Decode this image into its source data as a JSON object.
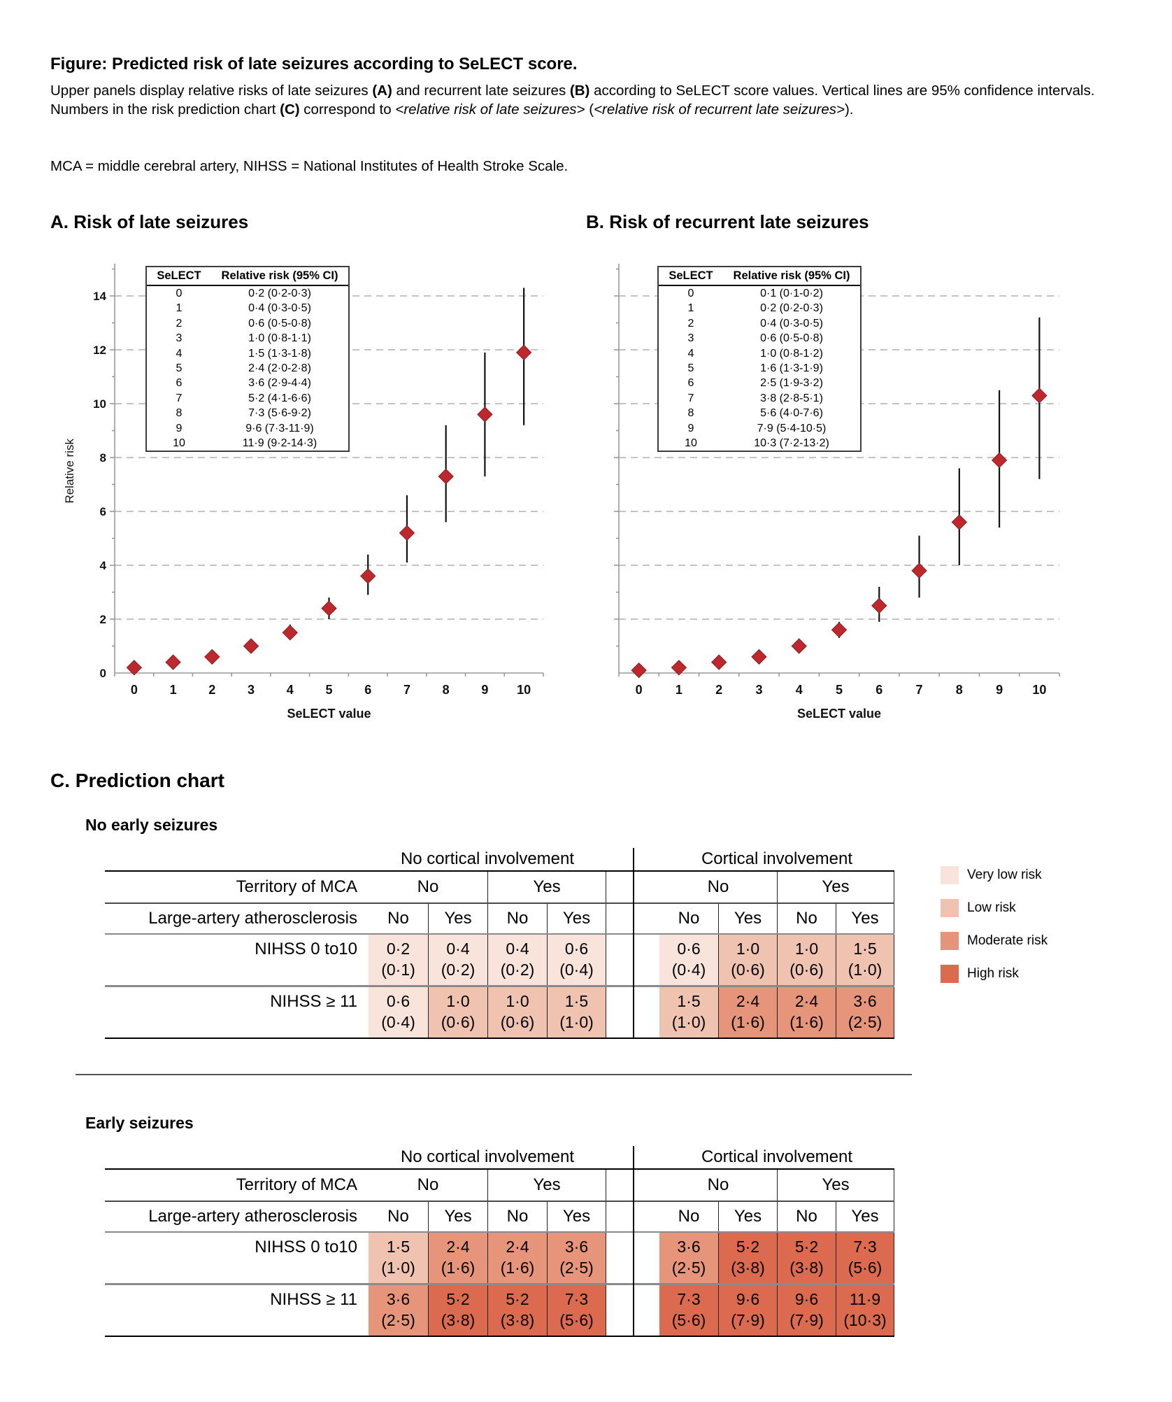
{
  "page": {
    "title": "Figure: Predicted risk of late seizures according to SeLECT score.",
    "caption_segments": [
      {
        "t": "Upper panels display relative risks of late seizures "
      },
      {
        "t": "(A)",
        "b": 1
      },
      {
        "t": " and recurrent late seizures "
      },
      {
        "t": "(B)",
        "b": 1
      },
      {
        "t": " according to SeLECT score values. Vertical lines are 95% confidence intervals. Numbers in the risk prediction chart "
      },
      {
        "t": "(C)",
        "b": 1
      },
      {
        "t": " correspond to "
      },
      {
        "t": "<relative risk of late seizures>",
        "i": 1
      },
      {
        "t": " ("
      },
      {
        "t": "<relative risk of recurrent late seizures>",
        "i": 1
      },
      {
        "t": ")."
      }
    ],
    "abbrev": "MCA = middle cerebral artery, NIHSS = National Institutes of Health Stroke Scale."
  },
  "panel_a": {
    "heading": "A. Risk of late seizures",
    "inset": {
      "header": [
        "SeLECT",
        "Relative risk (95% CI)"
      ],
      "rows": [
        [
          "0",
          "0·2 (0·2-0·3)"
        ],
        [
          "1",
          "0·4 (0·3-0·5)"
        ],
        [
          "2",
          "0·6 (0·5-0·8)"
        ],
        [
          "3",
          "1·0 (0·8-1·1)"
        ],
        [
          "4",
          "1·5 (1·3-1·8)"
        ],
        [
          "5",
          "2·4 (2·0-2·8)"
        ],
        [
          "6",
          "3·6 (2·9-4·4)"
        ],
        [
          "7",
          "5·2 (4·1-6·6)"
        ],
        [
          "8",
          "7·3 (5·6-9·2)"
        ],
        [
          "9",
          "9·6 (7·3-11·9)"
        ],
        [
          "10",
          "11·9 (9·2-14·3)"
        ]
      ]
    }
  },
  "panel_b": {
    "heading": "B. Risk of recurrent late seizures",
    "inset": {
      "header": [
        "SeLECT",
        "Relative risk (95% CI)"
      ],
      "rows": [
        [
          "0",
          "0·1 (0·1-0·2)"
        ],
        [
          "1",
          "0·2 (0·2-0·3)"
        ],
        [
          "2",
          "0·4 (0·3-0·5)"
        ],
        [
          "3",
          "0·6 (0·5-0·8)"
        ],
        [
          "4",
          "1·0 (0·8-1·2)"
        ],
        [
          "5",
          "1·6 (1·3-1·9)"
        ],
        [
          "6",
          "2·5 (1·9-3·2)"
        ],
        [
          "7",
          "3·8 (2·8-5·1)"
        ],
        [
          "8",
          "5·6 (4·0-7·6)"
        ],
        [
          "9",
          "7·9 (5·4-10·5)"
        ],
        [
          "10",
          "10·3 (7·2-13·2)"
        ]
      ]
    }
  },
  "chart_data": [
    {
      "id": "panel-a",
      "type": "scatter",
      "title": "A. Risk of late seizures",
      "x": [
        0,
        1,
        2,
        3,
        4,
        5,
        6,
        7,
        8,
        9,
        10
      ],
      "series": [
        {
          "name": "Relative risk (95% CI)",
          "values": [
            0.2,
            0.4,
            0.6,
            1.0,
            1.5,
            2.4,
            3.6,
            5.2,
            7.3,
            9.6,
            11.9
          ],
          "ci_low": [
            0.2,
            0.3,
            0.5,
            0.8,
            1.3,
            2.0,
            2.9,
            4.1,
            5.6,
            7.3,
            9.2
          ],
          "ci_high": [
            0.3,
            0.5,
            0.8,
            1.1,
            1.8,
            2.8,
            4.4,
            6.6,
            9.2,
            11.9,
            14.3
          ]
        }
      ],
      "xlabel": "SeLECT value",
      "ylabel": "Relative risk",
      "ylim": [
        0,
        15.2
      ],
      "yticks": [
        0,
        2,
        4,
        6,
        8,
        10,
        12,
        14
      ],
      "y_tick_labels": true,
      "grid": "horizontal-dashed",
      "marker": "diamond",
      "marker_color": "#be272c",
      "marker_edge": "#8e1d22",
      "ci_color": "#111111"
    },
    {
      "id": "panel-b",
      "type": "scatter",
      "title": "B. Risk of recurrent late seizures",
      "x": [
        0,
        1,
        2,
        3,
        4,
        5,
        6,
        7,
        8,
        9,
        10
      ],
      "series": [
        {
          "name": "Relative risk (95% CI)",
          "values": [
            0.1,
            0.2,
            0.4,
            0.6,
            1.0,
            1.6,
            2.5,
            3.8,
            5.6,
            7.9,
            10.3
          ],
          "ci_low": [
            0.1,
            0.2,
            0.3,
            0.5,
            0.8,
            1.3,
            1.9,
            2.8,
            4.0,
            5.4,
            7.2
          ],
          "ci_high": [
            0.2,
            0.3,
            0.5,
            0.8,
            1.2,
            1.9,
            3.2,
            5.1,
            7.6,
            10.5,
            13.2
          ]
        }
      ],
      "xlabel": "SeLECT value",
      "ylabel": "",
      "ylim": [
        0,
        15.2
      ],
      "yticks": [
        0,
        2,
        4,
        6,
        8,
        10,
        12,
        14
      ],
      "y_tick_labels": false,
      "grid": "horizontal-dashed",
      "marker": "diamond",
      "marker_color": "#be272c",
      "marker_edge": "#8e1d22",
      "ci_color": "#111111"
    }
  ],
  "prediction": {
    "heading": "C. Prediction chart",
    "legend": [
      {
        "id": "very-low",
        "label": "Very low risk",
        "color": "#f8e4db"
      },
      {
        "id": "low",
        "label": "Low risk",
        "color": "#f0c3b0"
      },
      {
        "id": "moderate",
        "label": "Moderate risk",
        "color": "#e6947a"
      },
      {
        "id": "high",
        "label": "High risk",
        "color": "#dc6a4e"
      }
    ],
    "tables": [
      {
        "subtitle": "No early seizures",
        "group_headers": [
          "No cortical involvement",
          "Cortical involvement"
        ],
        "territory_label": "Territory of MCA",
        "territory_values": [
          "No",
          "Yes",
          "No",
          "Yes"
        ],
        "laa_label": "Large-artery atherosclerosis",
        "laa_values": [
          "No",
          "Yes",
          "No",
          "Yes",
          "No",
          "Yes",
          "No",
          "Yes"
        ],
        "rows": [
          {
            "label": "NIHSS 0 to10",
            "cells": [
              {
                "v": "0·2",
                "p": "(0·1)",
                "risk": "very-low"
              },
              {
                "v": "0·4",
                "p": "(0·2)",
                "risk": "very-low"
              },
              {
                "v": "0·4",
                "p": "(0·2)",
                "risk": "very-low"
              },
              {
                "v": "0·6",
                "p": "(0·4)",
                "risk": "very-low"
              },
              {
                "v": "0·6",
                "p": "(0·4)",
                "risk": "very-low"
              },
              {
                "v": "1·0",
                "p": "(0·6)",
                "risk": "low"
              },
              {
                "v": "1·0",
                "p": "(0·6)",
                "risk": "low"
              },
              {
                "v": "1·5",
                "p": "(1·0)",
                "risk": "low"
              }
            ]
          },
          {
            "label": "NIHSS ≥ 11",
            "cells": [
              {
                "v": "0·6",
                "p": "(0·4)",
                "risk": "very-low"
              },
              {
                "v": "1·0",
                "p": "(0·6)",
                "risk": "low"
              },
              {
                "v": "1·0",
                "p": "(0·6)",
                "risk": "low"
              },
              {
                "v": "1·5",
                "p": "(1·0)",
                "risk": "low"
              },
              {
                "v": "1·5",
                "p": "(1·0)",
                "risk": "low"
              },
              {
                "v": "2·4",
                "p": "(1·6)",
                "risk": "moderate"
              },
              {
                "v": "2·4",
                "p": "(1·6)",
                "risk": "moderate"
              },
              {
                "v": "3·6",
                "p": "(2·5)",
                "risk": "moderate"
              }
            ]
          }
        ]
      },
      {
        "subtitle": "Early seizures",
        "group_headers": [
          "No cortical involvement",
          "Cortical involvement"
        ],
        "territory_label": "Territory of MCA",
        "territory_values": [
          "No",
          "Yes",
          "No",
          "Yes"
        ],
        "laa_label": "Large-artery atherosclerosis",
        "laa_values": [
          "No",
          "Yes",
          "No",
          "Yes",
          "No",
          "Yes",
          "No",
          "Yes"
        ],
        "rows": [
          {
            "label": "NIHSS 0 to10",
            "cells": [
              {
                "v": "1·5",
                "p": "(1·0)",
                "risk": "low"
              },
              {
                "v": "2·4",
                "p": "(1·6)",
                "risk": "moderate"
              },
              {
                "v": "2·4",
                "p": "(1·6)",
                "risk": "moderate"
              },
              {
                "v": "3·6",
                "p": "(2·5)",
                "risk": "moderate"
              },
              {
                "v": "3·6",
                "p": "(2·5)",
                "risk": "moderate"
              },
              {
                "v": "5·2",
                "p": "(3·8)",
                "risk": "high"
              },
              {
                "v": "5·2",
                "p": "(3·8)",
                "risk": "high"
              },
              {
                "v": "7·3",
                "p": "(5·6)",
                "risk": "high"
              }
            ]
          },
          {
            "label": "NIHSS ≥ 11",
            "cells": [
              {
                "v": "3·6",
                "p": "(2·5)",
                "risk": "moderate"
              },
              {
                "v": "5·2",
                "p": "(3·8)",
                "risk": "high"
              },
              {
                "v": "5·2",
                "p": "(3·8)",
                "risk": "high"
              },
              {
                "v": "7·3",
                "p": "(5·6)",
                "risk": "high"
              },
              {
                "v": "7·3",
                "p": "(5·6)",
                "risk": "high"
              },
              {
                "v": "9·6",
                "p": "(7·9)",
                "risk": "high"
              },
              {
                "v": "9·6",
                "p": "(7·9)",
                "risk": "high"
              },
              {
                "v": "11·9",
                "p": "(10·3)",
                "risk": "high"
              }
            ]
          }
        ]
      }
    ]
  }
}
